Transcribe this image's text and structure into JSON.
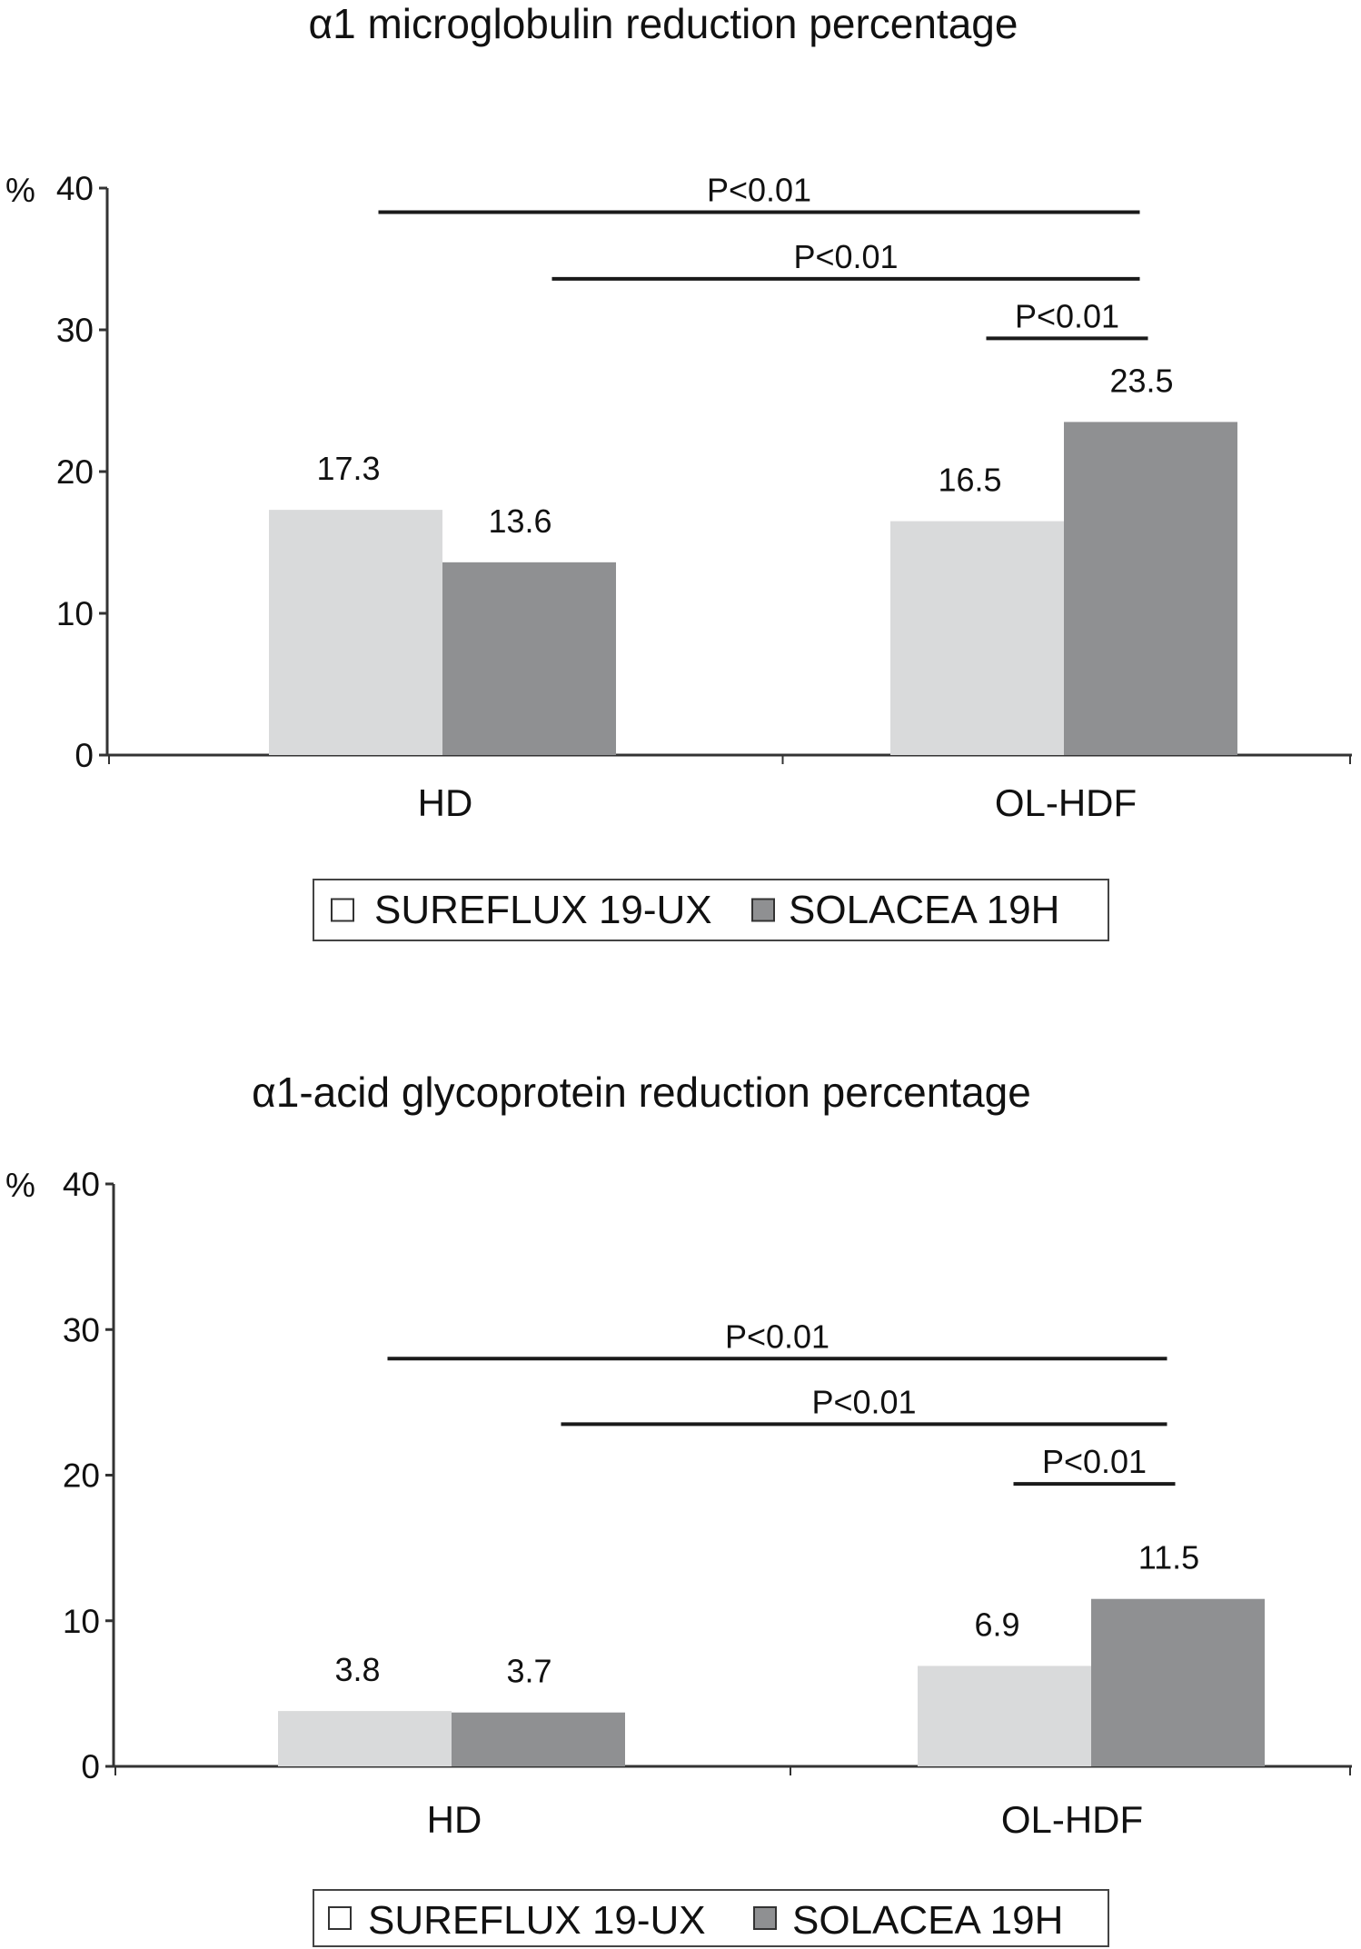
{
  "colors": {
    "series_light": "#d9dadb",
    "series_dark": "#8f9092",
    "axis": "#333333",
    "text": "#111111"
  },
  "chart_data": [
    {
      "type": "bar",
      "title": "α1 microglobulin reduction percentage",
      "ylabel": "%",
      "ylim": [
        0,
        40
      ],
      "yticks": [
        "0",
        "10",
        "20",
        "30",
        "40"
      ],
      "categories": [
        "HD",
        "OL-HDF"
      ],
      "series": [
        {
          "name": "SUREFLUX 19-UX",
          "values": [
            17.3,
            16.5
          ],
          "labels": [
            "17.3",
            "16.5"
          ],
          "color": "#d9dadb"
        },
        {
          "name": "SOLACEA 19H",
          "values": [
            13.6,
            23.5
          ],
          "labels": [
            "13.6",
            "23.5"
          ],
          "color": "#8f9092"
        }
      ],
      "annotations": [
        {
          "text": "P<0.01",
          "from": "HD / SUREFLUX 19-UX",
          "to": "OL-HDF / SOLACEA 19H",
          "level": 38.3
        },
        {
          "text": "P<0.01",
          "from": "HD / SOLACEA 19H",
          "to": "OL-HDF / SOLACEA 19H",
          "level": 33.6
        },
        {
          "text": "P<0.01",
          "from": "OL-HDF / SUREFLUX 19-UX",
          "to": "OL-HDF / SOLACEA 19H",
          "level": 29.4
        }
      ],
      "legend": {
        "position": "bottom",
        "entries": [
          "SUREFLUX 19-UX",
          "SOLACEA 19H"
        ]
      }
    },
    {
      "type": "bar",
      "title": "α1-acid glycoprotein reduction percentage",
      "ylabel": "%",
      "ylim": [
        0,
        40
      ],
      "yticks": [
        "0",
        "10",
        "20",
        "30",
        "40"
      ],
      "categories": [
        "HD",
        "OL-HDF"
      ],
      "series": [
        {
          "name": "SUREFLUX 19-UX",
          "values": [
            3.8,
            6.9
          ],
          "labels": [
            "3.8",
            "6.9"
          ],
          "color": "#d9dadb"
        },
        {
          "name": "SOLACEA 19H",
          "values": [
            3.7,
            11.5
          ],
          "labels": [
            "3.7",
            "11.5"
          ],
          "color": "#8f9092"
        }
      ],
      "annotations": [
        {
          "text": "P<0.01",
          "from": "HD / SUREFLUX 19-UX",
          "to": "OL-HDF / SOLACEA 19H",
          "level": 28.0
        },
        {
          "text": "P<0.01",
          "from": "HD / SOLACEA 19H",
          "to": "OL-HDF / SOLACEA 19H",
          "level": 23.5
        },
        {
          "text": "P<0.01",
          "from": "OL-HDF / SUREFLUX 19-UX",
          "to": "OL-HDF / SOLACEA 19H",
          "level": 19.4
        }
      ],
      "legend": {
        "position": "bottom",
        "entries": [
          "SUREFLUX 19-UX",
          "SOLACEA 19H"
        ]
      }
    }
  ]
}
